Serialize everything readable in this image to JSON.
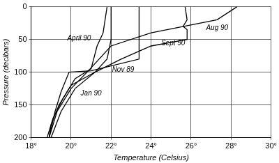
{
  "chart_data": {
    "type": "line",
    "x_label": "Temperature (Celsius)",
    "y_label": "Pressure (decibars)",
    "xlim": [
      18,
      30
    ],
    "xticks": [
      {
        "value": 18,
        "label": "18°"
      },
      {
        "value": 20,
        "label": "20°"
      },
      {
        "value": 22,
        "label": "22°"
      },
      {
        "value": 24,
        "label": "24°"
      },
      {
        "value": 26,
        "label": "26°"
      },
      {
        "value": 28,
        "label": "28°"
      },
      {
        "value": 30,
        "label": "30°"
      }
    ],
    "ylim": [
      0,
      200
    ],
    "yticks": [
      0,
      50,
      100,
      150,
      200
    ],
    "grid": true,
    "series": [
      {
        "name": "April 90",
        "color": "#000000",
        "x": [
          21.8,
          21.6,
          21.3,
          21.0,
          20.2,
          19.6,
          19.1,
          18.8
        ],
        "y": [
          0,
          40,
          60,
          95,
          110,
          140,
          170,
          200
        ],
        "label_position": {
          "x": 20.4,
          "y": 48
        }
      },
      {
        "name": "Aug 90",
        "color": "#000000",
        "x": [
          28.3,
          27.3,
          24.0,
          22.0,
          20.8,
          20.0,
          19.3,
          18.9
        ],
        "y": [
          0,
          20,
          40,
          60,
          100,
          125,
          160,
          200
        ],
        "label_position": {
          "x": 27.3,
          "y": 33
        }
      },
      {
        "name": "Sept 90",
        "color": "#000000",
        "x": [
          25.7,
          25.8,
          25.6,
          25.8,
          25.8,
          24.0,
          22.5,
          21.2,
          20.2,
          19.5,
          19.0
        ],
        "y": [
          0,
          20,
          30,
          35,
          50,
          60,
          80,
          100,
          125,
          160,
          200
        ],
        "label_position": {
          "x": 25.1,
          "y": 56
        }
      },
      {
        "name": "Nov 89",
        "color": "#000000",
        "x": [
          23.4,
          23.4,
          21.0,
          19.9,
          19.5,
          19.2,
          18.9
        ],
        "y": [
          0,
          80,
          98,
          100,
          130,
          160,
          200
        ],
        "label_position": {
          "x": 22.6,
          "y": 96
        }
      },
      {
        "name": "Jan 90",
        "color": "#000000",
        "x": [
          22.0,
          22.0,
          21.8,
          21.2,
          20.0,
          19.4,
          19.0,
          18.9
        ],
        "y": [
          0,
          50,
          80,
          100,
          120,
          150,
          180,
          200
        ],
        "label_position": {
          "x": 21.0,
          "y": 133
        }
      }
    ]
  }
}
